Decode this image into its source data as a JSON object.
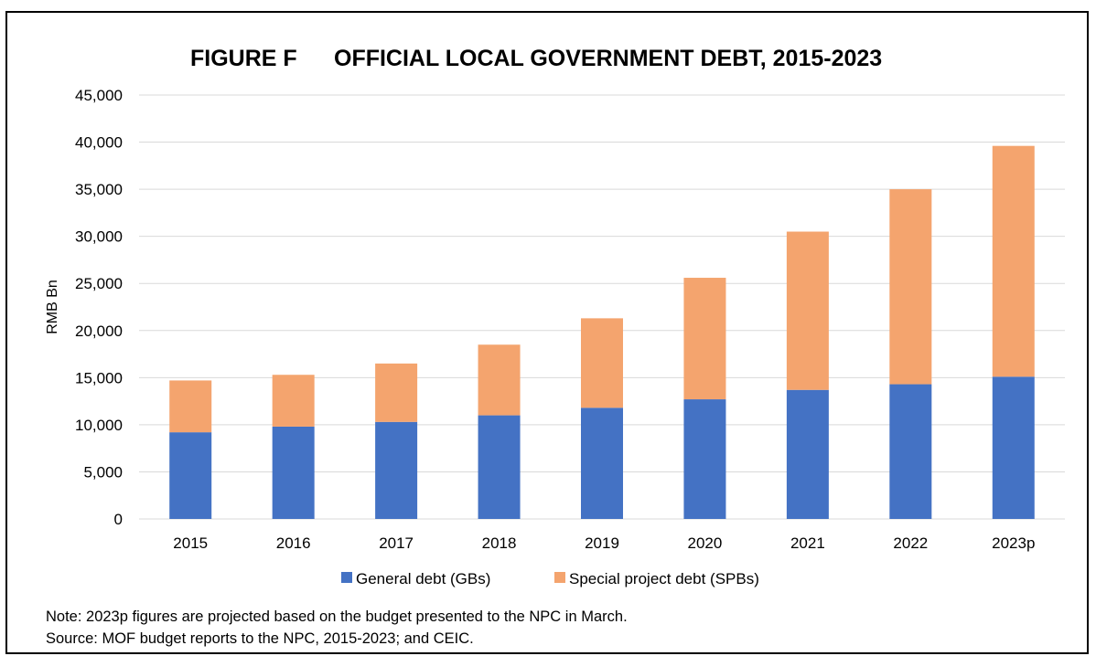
{
  "chart_data": {
    "type": "bar",
    "stacked": true,
    "title_prefix": "FIGURE F",
    "title": "OFFICIAL LOCAL GOVERNMENT DEBT, 2015-2023",
    "xlabel": "",
    "ylabel": "RMB Bn",
    "ylim": [
      0,
      45000
    ],
    "yticks": [
      0,
      5000,
      10000,
      15000,
      20000,
      25000,
      30000,
      35000,
      40000,
      45000
    ],
    "ytick_labels": [
      "0",
      "5,000",
      "10,000",
      "15,000",
      "20,000",
      "25,000",
      "30,000",
      "35,000",
      "40,000",
      "45,000"
    ],
    "categories": [
      "2015",
      "2016",
      "2017",
      "2018",
      "2019",
      "2020",
      "2021",
      "2022",
      "2023p"
    ],
    "series": [
      {
        "name": "General debt (GBs)",
        "color": "#4472C4",
        "values": [
          9200,
          9800,
          10300,
          11000,
          11800,
          12700,
          13700,
          14300,
          15100
        ]
      },
      {
        "name": "Special project debt (SPBs)",
        "color": "#F4A46E",
        "values": [
          5500,
          5500,
          6200,
          7500,
          9500,
          12900,
          16800,
          20700,
          24500
        ]
      }
    ],
    "grid": true,
    "legend_position": "bottom"
  },
  "notes": {
    "note": "Note: 2023p figures are projected based on the budget presented to the NPC in March.",
    "source": "Source: MOF budget reports to the NPC, 2015-2023; and CEIC."
  }
}
